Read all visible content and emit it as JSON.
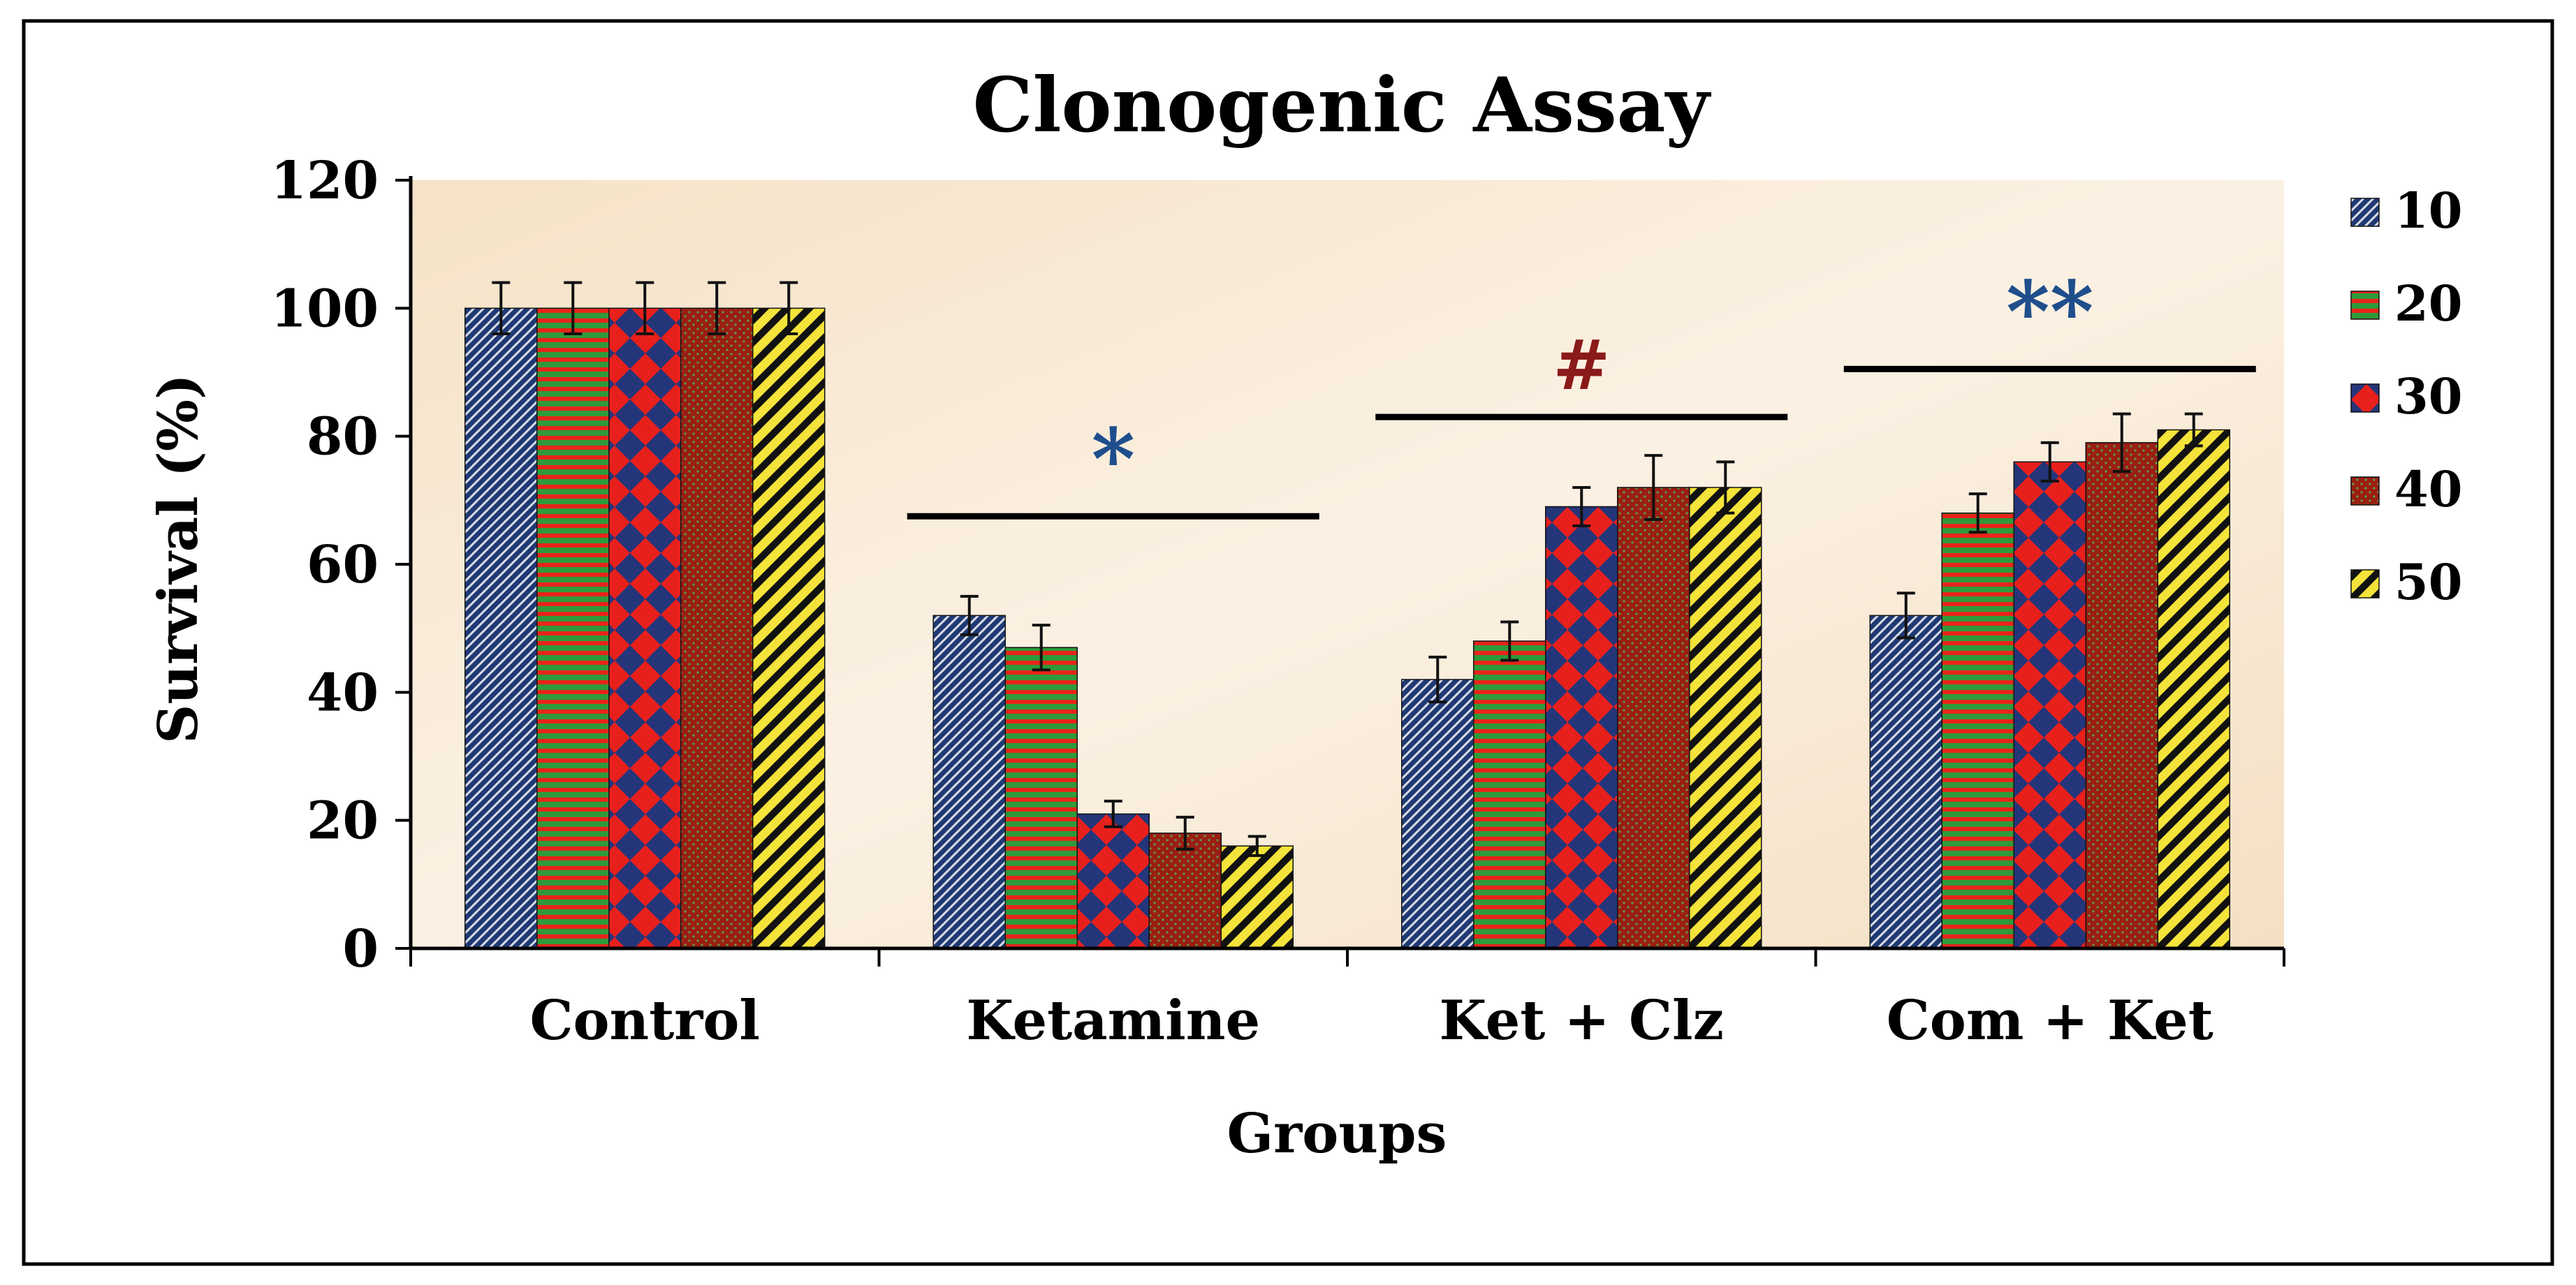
{
  "chart_data": {
    "type": "bar",
    "title": "Clonogenic Assay",
    "xlabel": "Groups",
    "ylabel": "Survival (%)",
    "ylim": [
      0,
      120
    ],
    "yticks": [
      "0",
      "20",
      "40",
      "60",
      "80",
      "100",
      "120"
    ],
    "categories": [
      "Control",
      "Ketamine",
      "Ket + Clz",
      "Com + Ket"
    ],
    "series": [
      {
        "name": "10",
        "values": [
          100,
          52,
          42,
          52
        ],
        "errors": [
          4,
          3,
          3.5,
          3.5
        ],
        "color": "#1f3a73",
        "pattern": "diagonal"
      },
      {
        "name": "20",
        "values": [
          100,
          47,
          48,
          68
        ],
        "errors": [
          4,
          3.5,
          3,
          3
        ],
        "color": "#2e9a3a",
        "pattern": "horizontal"
      },
      {
        "name": "30",
        "values": [
          100,
          21,
          69,
          76
        ],
        "errors": [
          4,
          2,
          3,
          3
        ],
        "color": "#e8201c",
        "pattern": "diamond"
      },
      {
        "name": "40",
        "values": [
          100,
          18,
          72,
          79
        ],
        "errors": [
          4,
          2.5,
          5,
          4.5
        ],
        "color": "#8a1a12",
        "pattern": "dots"
      },
      {
        "name": "50",
        "values": [
          100,
          16,
          72,
          81
        ],
        "errors": [
          4,
          1.5,
          4,
          2.5
        ],
        "color": "#f4e33a",
        "pattern": "stripes"
      }
    ],
    "annotations": [
      {
        "text": "*",
        "category": "Ketamine",
        "line_y": 67.5,
        "color": "#1f4e8c"
      },
      {
        "text": "#",
        "category": "Ket + Clz",
        "line_y": 83,
        "color": "#8b1a1a"
      },
      {
        "text": "**",
        "category": "Com + Ket",
        "line_y": 90.5,
        "color": "#1f4e8c"
      }
    ],
    "legend_position": "right"
  }
}
